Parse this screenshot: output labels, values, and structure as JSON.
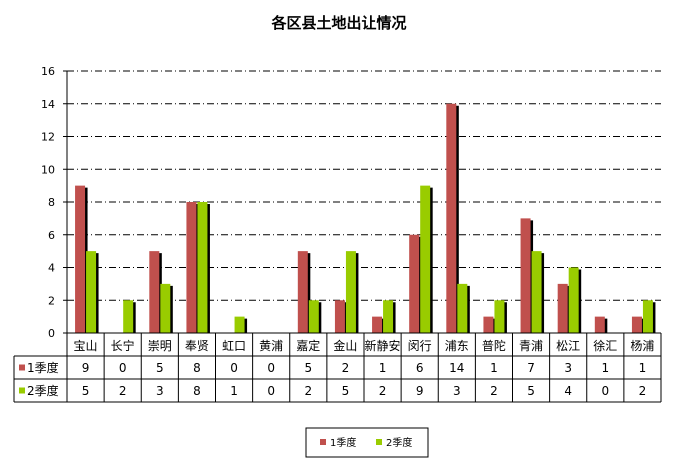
{
  "chart_data": {
    "type": "bar",
    "title": "各区县土地出让情况",
    "categories": [
      "宝山",
      "长宁",
      "崇明",
      "奉贤",
      "虹口",
      "黄浦",
      "嘉定",
      "金山",
      "新静安",
      "闵行",
      "浦东",
      "普陀",
      "青浦",
      "松江",
      "徐汇",
      "杨浦"
    ],
    "series": [
      {
        "name": "1季度",
        "color": "#C0504D",
        "values": [
          9,
          0,
          5,
          8,
          0,
          0,
          5,
          2,
          1,
          6,
          14,
          1,
          7,
          3,
          1,
          1
        ]
      },
      {
        "name": "2季度",
        "color": "#99CC00",
        "values": [
          5,
          2,
          3,
          8,
          1,
          0,
          2,
          5,
          2,
          9,
          3,
          2,
          5,
          4,
          0,
          2
        ]
      }
    ],
    "ylim": [
      0,
      16
    ],
    "yticks": [
      0,
      2,
      4,
      6,
      8,
      10,
      12,
      14,
      16
    ],
    "grid": "horizontal dash-dot",
    "legend_position": "bottom",
    "data_table": true
  }
}
